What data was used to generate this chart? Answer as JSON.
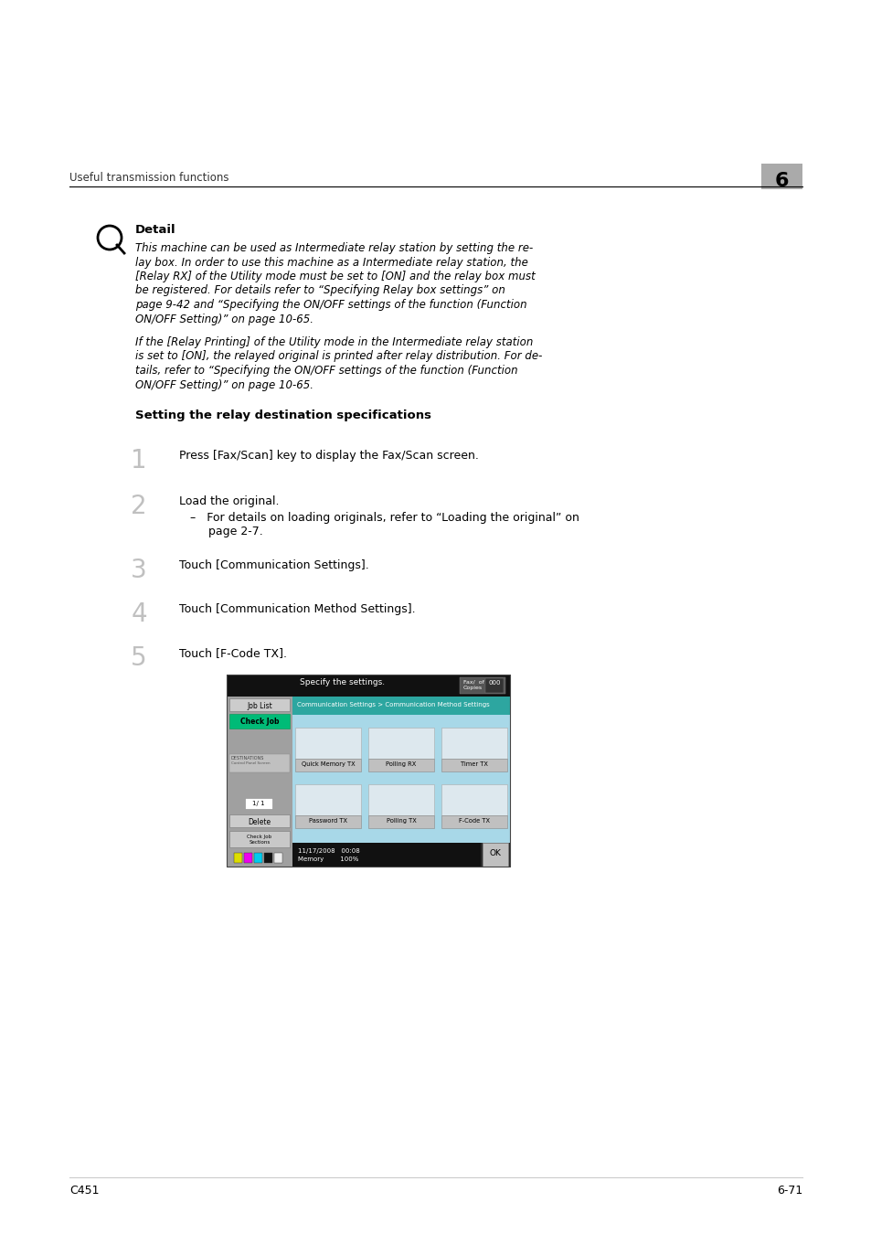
{
  "bg_color": "#ffffff",
  "header_text": "Useful transmission functions",
  "header_chapter": "6",
  "footer_left": "C451",
  "footer_right": "6-71",
  "detail_label": "Detail",
  "detail_lines1": [
    "This machine can be used as Intermediate relay station by setting the re-",
    "lay box. In order to use this machine as a Intermediate relay station, the",
    "[Relay RX] of the Utility mode must be set to [ON] and the relay box must",
    "be registered. For details refer to “Specifying Relay box settings” on",
    "page 9-42 and “Specifying the ON/OFF settings of the function (Function",
    "ON/OFF Setting)” on page 10-65."
  ],
  "detail_lines2": [
    "If the [Relay Printing] of the Utility mode in the Intermediate relay station",
    "is set to [ON], the relayed original is printed after relay distribution. For de-",
    "tails, refer to “Specifying the ON/OFF settings of the function (Function",
    "ON/OFF Setting)” on page 10-65."
  ],
  "section_title": "Setting the relay destination specifications",
  "step1": "Press [Fax/Scan] key to display the Fax/Scan screen.",
  "step2": "Load the original.",
  "step2b_line1": "–   For details on loading originals, refer to “Loading the original” on",
  "step2b_line2": "     page 2-7.",
  "step3": "Touch [Communication Settings].",
  "step4": "Touch [Communication Method Settings].",
  "step5": "Touch [F-Code TX].",
  "btn_row1": [
    "Quick Memory TX",
    "Polling RX",
    "Timer TX"
  ],
  "btn_row2": [
    "Password TX",
    "Polling TX",
    "F-Code TX"
  ],
  "screen_title": "Specify the settings.",
  "breadcrumb": "Communication Settings > Communication Method Settings",
  "status_date": "11/17/2008   00:08",
  "status_memory": "Memory        100%"
}
